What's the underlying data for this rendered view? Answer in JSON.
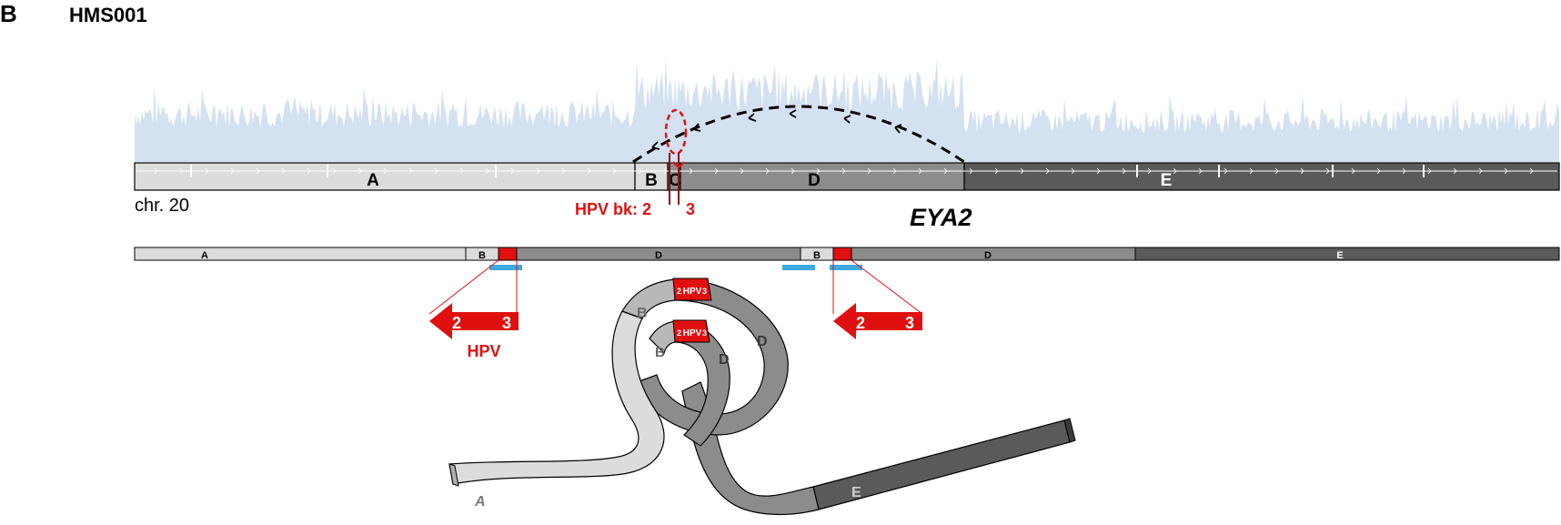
{
  "panel_letter": "B",
  "sample_id": "HMS001",
  "chromosome_label": "chr. 20",
  "gene_label": "EYA2",
  "breakpoint_label": "HPV bk: 2",
  "breakpoint_label_2": "3",
  "hpv_label": "HPV",
  "hpv_numbers": [
    "2",
    "3"
  ],
  "hpv_loop_label": "HPV",
  "top_segments": [
    {
      "label": "A",
      "color": "#dcdcdc"
    },
    {
      "label": "B",
      "color": "#dcdcdc"
    },
    {
      "label": "C",
      "color": "#8c8c8c"
    },
    {
      "label": "D",
      "color": "#8c8c8c"
    },
    {
      "label": "E",
      "color": "#5a5a5a"
    }
  ],
  "middle_segments": [
    {
      "label": "A",
      "color": "#dcdcdc"
    },
    {
      "label": "B",
      "color": "#dcdcdc"
    },
    {
      "label": "",
      "color": "#e01010"
    },
    {
      "label": "D",
      "color": "#8c8c8c"
    },
    {
      "label": "B",
      "color": "#dcdcdc"
    },
    {
      "label": "",
      "color": "#e01010"
    },
    {
      "label": "D",
      "color": "#8c8c8c"
    },
    {
      "label": "E",
      "color": "#5a5a5a"
    }
  ],
  "ribbon_labels": [
    "A",
    "B",
    "B",
    "D",
    "D",
    "E"
  ],
  "colors": {
    "coverage": "#d3e1f1",
    "light": "#dcdcdc",
    "mid": "#8c8c8c",
    "dark": "#5a5a5a",
    "hpv_red": "#e01010",
    "blue": "#3ea8e0"
  }
}
